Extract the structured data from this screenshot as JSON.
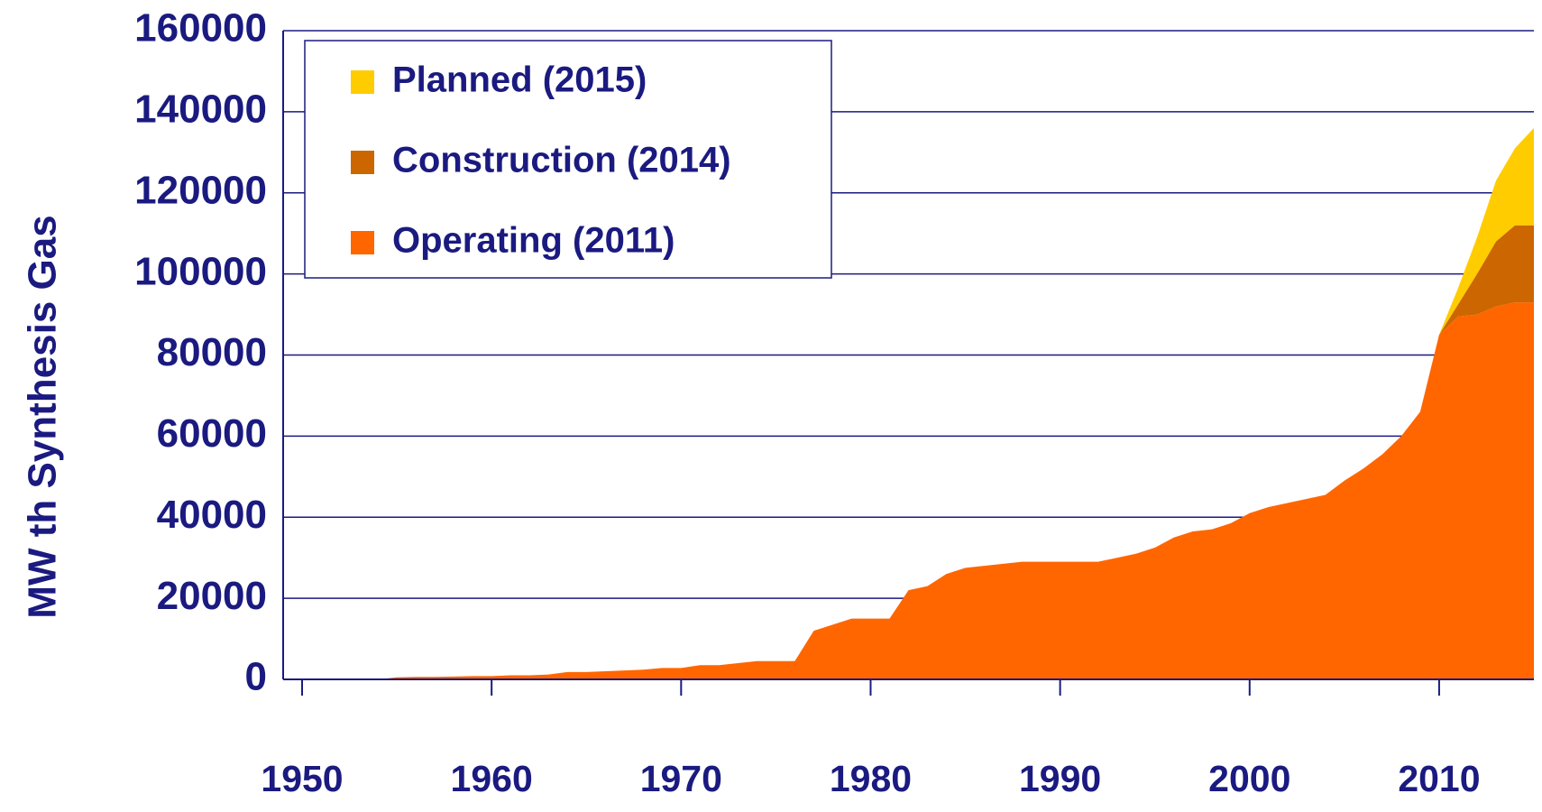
{
  "chart_data": {
    "type": "stacked_area",
    "ylabel": "MW th Synthesis Gas",
    "x": [
      1950,
      1951,
      1952,
      1953,
      1954,
      1955,
      1956,
      1957,
      1958,
      1959,
      1960,
      1961,
      1962,
      1963,
      1964,
      1965,
      1966,
      1967,
      1968,
      1969,
      1970,
      1971,
      1972,
      1973,
      1974,
      1975,
      1976,
      1977,
      1978,
      1979,
      1980,
      1981,
      1982,
      1983,
      1984,
      1985,
      1986,
      1987,
      1988,
      1989,
      1990,
      1991,
      1992,
      1993,
      1994,
      1995,
      1996,
      1997,
      1998,
      1999,
      2000,
      2001,
      2002,
      2003,
      2004,
      2005,
      2006,
      2007,
      2008,
      2009,
      2010,
      2011,
      2012,
      2013,
      2014,
      2015
    ],
    "series": [
      {
        "name": "Operating (2011)",
        "color": "#ff6600",
        "values": [
          0,
          0,
          0,
          0,
          0,
          500,
          600,
          600,
          700,
          800,
          800,
          1000,
          1000,
          1200,
          1800,
          1800,
          2000,
          2200,
          2400,
          2800,
          2800,
          3500,
          3500,
          4000,
          4500,
          4500,
          4500,
          12000,
          13500,
          15000,
          15000,
          15000,
          22000,
          23000,
          26000,
          27500,
          28000,
          28500,
          29000,
          29000,
          29000,
          29000,
          29000,
          30000,
          31000,
          32500,
          35000,
          36500,
          37000,
          38500,
          41000,
          42500,
          43500,
          44500,
          45500,
          49000,
          52000,
          55500,
          60000,
          66000,
          85000,
          89500,
          90000,
          92000,
          93000,
          93000
        ]
      },
      {
        "name": "Construction (2014)",
        "color": "#cc6600",
        "values": [
          0,
          0,
          0,
          0,
          0,
          0,
          0,
          0,
          0,
          0,
          0,
          0,
          0,
          0,
          0,
          0,
          0,
          0,
          0,
          0,
          0,
          0,
          0,
          0,
          0,
          0,
          0,
          0,
          0,
          0,
          0,
          0,
          0,
          0,
          0,
          0,
          0,
          0,
          0,
          0,
          0,
          0,
          0,
          0,
          0,
          0,
          0,
          0,
          0,
          0,
          0,
          0,
          0,
          0,
          0,
          0,
          0,
          0,
          0,
          0,
          0,
          3000,
          10000,
          16000,
          19000,
          19000
        ]
      },
      {
        "name": "Planned (2015)",
        "color": "#ffcc00",
        "values": [
          0,
          0,
          0,
          0,
          0,
          0,
          0,
          0,
          0,
          0,
          0,
          0,
          0,
          0,
          0,
          0,
          0,
          0,
          0,
          0,
          0,
          0,
          0,
          0,
          0,
          0,
          0,
          0,
          0,
          0,
          0,
          0,
          0,
          0,
          0,
          0,
          0,
          0,
          0,
          0,
          0,
          0,
          0,
          0,
          0,
          0,
          0,
          0,
          0,
          0,
          0,
          0,
          0,
          0,
          0,
          0,
          0,
          0,
          0,
          0,
          0,
          4000,
          9000,
          15000,
          19000,
          24000
        ]
      }
    ],
    "xlim": [
      1949,
      2015
    ],
    "xticks": [
      1950,
      1960,
      1970,
      1980,
      1990,
      2000,
      2010
    ],
    "ylim": [
      0,
      160000
    ],
    "yticks": [
      0,
      20000,
      40000,
      60000,
      80000,
      100000,
      120000,
      140000,
      160000
    ],
    "grid": true,
    "legend": "upper left"
  }
}
